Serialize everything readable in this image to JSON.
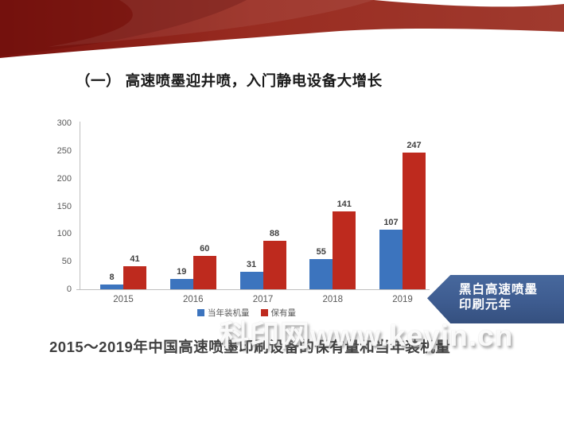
{
  "slide": {
    "title": "（一） 高速喷墨迎井喷，入门静电设备大增长",
    "caption": "2015～2019年中国高速喷墨印刷设备的保有量和当年装机量",
    "callout": {
      "lines": [
        "黑白高速喷墨",
        "印刷元年"
      ],
      "bg_color": "#3E5C90"
    },
    "watermark": "科印网www.keyin.cn"
  },
  "chart_data": {
    "type": "bar",
    "categories": [
      "2015",
      "2016",
      "2017",
      "2018",
      "2019"
    ],
    "series": [
      {
        "name": "当年装机量",
        "color": "#3C74BE",
        "values": [
          8,
          19,
          31,
          55,
          107
        ]
      },
      {
        "name": "保有量",
        "color": "#BE2A1E",
        "values": [
          41,
          60,
          88,
          141,
          247
        ]
      }
    ],
    "title": "",
    "xlabel": "",
    "ylabel": "",
    "ylim": [
      0,
      300
    ],
    "yticks": [
      0,
      50,
      100,
      150,
      200,
      250,
      300
    ],
    "grid": false,
    "legend_position": "bottom"
  },
  "colors": {
    "ribbon_red_dark": "#6D0F0B",
    "ribbon_red": "#8E1D15",
    "ribbon_red_light": "#A03A2E",
    "axis_gray": "#BFBFBF",
    "bar_blue": "#3C74BE",
    "bar_red": "#BE2A1E",
    "callout_blue": "#3E5C90"
  }
}
